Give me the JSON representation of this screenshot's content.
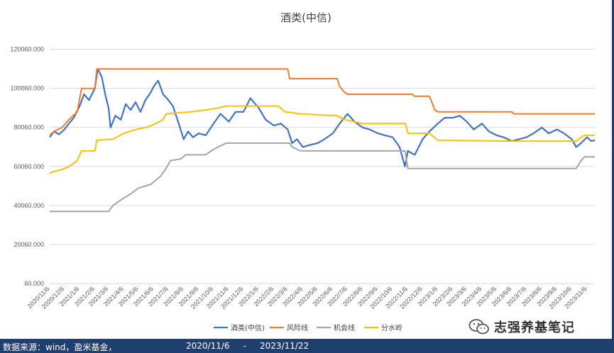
{
  "colors": {
    "wine": "#4472c4",
    "risk": "#ed7d31",
    "chance": "#a5a5a5",
    "divide": "#ffc000",
    "grid": "#d9d9d9",
    "footer_bg": "#1f3f6e"
  },
  "footer": {
    "source": "数据来源：wind，盈米基金，",
    "start": "2020/11/6",
    "dash": "-",
    "end": "2023/11/22"
  },
  "watermark": {
    "text": "志强养基笔记",
    "icon": "wechat-icon"
  },
  "chart_data": {
    "type": "line",
    "title": "酒类(中信)",
    "xlabel": "",
    "ylabel": "",
    "ylim": [
      60,
      130060
    ],
    "yticks": [
      "60.000",
      "20060.000",
      "40060.000",
      "60060.000",
      "80060.000",
      "100060.000",
      "120060.000"
    ],
    "ytick_values": [
      60,
      20060,
      40060,
      60060,
      80060,
      100060,
      120060
    ],
    "x_start": "2020/11/6",
    "x_end": "2023/11/22",
    "x_ticks": [
      "2020/11/6",
      "2020/12/6",
      "2021/1/6",
      "2021/2/6",
      "2021/3/6",
      "2021/4/6",
      "2021/5/6",
      "2021/6/6",
      "2021/7/6",
      "2021/8/6",
      "2021/9/6",
      "2021/10/6",
      "2021/11/6",
      "2021/12/6",
      "2022/1/6",
      "2022/2/6",
      "2022/3/6",
      "2022/4/6",
      "2022/5/6",
      "2022/6/6",
      "2022/7/6",
      "2022/8/6",
      "2022/9/6",
      "2022/10/6",
      "2022/11/6",
      "2022/12/6",
      "2023/1/6",
      "2023/2/6",
      "2023/3/6",
      "2023/4/6",
      "2023/5/6",
      "2023/6/6",
      "2023/7/6",
      "2023/8/6",
      "2023/9/6",
      "2023/10/6",
      "2023/11/6"
    ],
    "grid": true,
    "legend_position": "bottom",
    "series": [
      {
        "name": "酒类(中信)",
        "color": "#4472c4",
        "points": [
          [
            "2020/11/6",
            75000
          ],
          [
            "2020/11/15",
            78000
          ],
          [
            "2020/11/25",
            76500
          ],
          [
            "2020/12/6",
            79000
          ],
          [
            "2020/12/15",
            82000
          ],
          [
            "2020/12/25",
            85000
          ],
          [
            "2021/1/6",
            91000
          ],
          [
            "2021/1/15",
            97000
          ],
          [
            "2021/1/25",
            94000
          ],
          [
            "2021/2/6",
            100000
          ],
          [
            "2021/2/12",
            110000
          ],
          [
            "2021/2/20",
            106000
          ],
          [
            "2021/2/28",
            96000
          ],
          [
            "2021/3/6",
            90000
          ],
          [
            "2021/3/10",
            80000
          ],
          [
            "2021/3/20",
            86000
          ],
          [
            "2021/3/31",
            84000
          ],
          [
            "2021/4/10",
            92000
          ],
          [
            "2021/4/20",
            89000
          ],
          [
            "2021/4/30",
            93000
          ],
          [
            "2021/5/10",
            88000
          ],
          [
            "2021/5/20",
            94000
          ],
          [
            "2021/5/31",
            98000
          ],
          [
            "2021/6/6",
            101000
          ],
          [
            "2021/6/15",
            104000
          ],
          [
            "2021/6/25",
            97000
          ],
          [
            "2021/7/6",
            94000
          ],
          [
            "2021/7/15",
            91000
          ],
          [
            "2021/7/27",
            82000
          ],
          [
            "2021/8/6",
            74000
          ],
          [
            "2021/8/15",
            78000
          ],
          [
            "2021/8/25",
            75000
          ],
          [
            "2021/9/6",
            77000
          ],
          [
            "2021/9/20",
            76000
          ],
          [
            "2021/10/6",
            82000
          ],
          [
            "2021/10/20",
            87000
          ],
          [
            "2021/11/6",
            83000
          ],
          [
            "2021/11/20",
            88000
          ],
          [
            "2021/12/6",
            88000
          ],
          [
            "2021/12/20",
            95000
          ],
          [
            "2022/1/6",
            90000
          ],
          [
            "2022/1/20",
            84000
          ],
          [
            "2022/2/6",
            81000
          ],
          [
            "2022/2/20",
            82000
          ],
          [
            "2022/3/6",
            79000
          ],
          [
            "2022/3/15",
            72000
          ],
          [
            "2022/3/25",
            74000
          ],
          [
            "2022/4/6",
            70000
          ],
          [
            "2022/4/20",
            71000
          ],
          [
            "2022/5/6",
            72000
          ],
          [
            "2022/5/20",
            74000
          ],
          [
            "2022/6/6",
            77000
          ],
          [
            "2022/6/20",
            82000
          ],
          [
            "2022/7/6",
            87000
          ],
          [
            "2022/7/20",
            83000
          ],
          [
            "2022/8/6",
            80000
          ],
          [
            "2022/8/20",
            79000
          ],
          [
            "2022/9/6",
            77000
          ],
          [
            "2022/9/20",
            76000
          ],
          [
            "2022/10/6",
            75000
          ],
          [
            "2022/10/20",
            70000
          ],
          [
            "2022/10/31",
            60000
          ],
          [
            "2022/11/6",
            68000
          ],
          [
            "2022/11/20",
            66000
          ],
          [
            "2022/12/6",
            74000
          ],
          [
            "2022/12/20",
            78000
          ],
          [
            "2023/1/6",
            82000
          ],
          [
            "2023/1/20",
            85000
          ],
          [
            "2023/2/6",
            85000
          ],
          [
            "2023/2/20",
            86000
          ],
          [
            "2023/3/6",
            83000
          ],
          [
            "2023/3/20",
            79000
          ],
          [
            "2023/4/6",
            82000
          ],
          [
            "2023/4/20",
            78000
          ],
          [
            "2023/5/6",
            76000
          ],
          [
            "2023/5/20",
            75000
          ],
          [
            "2023/6/6",
            73000
          ],
          [
            "2023/6/20",
            74000
          ],
          [
            "2023/7/6",
            75000
          ],
          [
            "2023/7/20",
            77000
          ],
          [
            "2023/8/6",
            80000
          ],
          [
            "2023/8/20",
            77000
          ],
          [
            "2023/9/6",
            79000
          ],
          [
            "2023/9/20",
            77000
          ],
          [
            "2023/10/6",
            74000
          ],
          [
            "2023/10/15",
            70000
          ],
          [
            "2023/10/25",
            72000
          ],
          [
            "2023/11/6",
            75000
          ],
          [
            "2023/11/15",
            73000
          ],
          [
            "2023/11/22",
            73500
          ]
        ]
      },
      {
        "name": "风险线",
        "color": "#ed7d31",
        "points": [
          [
            "2020/11/6",
            76000
          ],
          [
            "2020/11/15",
            78000
          ],
          [
            "2020/12/1",
            80000
          ],
          [
            "2020/12/15",
            84000
          ],
          [
            "2021/1/1",
            88000
          ],
          [
            "2021/1/10",
            100000
          ],
          [
            "2021/2/6",
            100000
          ],
          [
            "2021/2/10",
            110000
          ],
          [
            "2022/3/6",
            110000
          ],
          [
            "2022/3/10",
            105000
          ],
          [
            "2022/6/15",
            105000
          ],
          [
            "2022/6/20",
            101000
          ],
          [
            "2022/6/30",
            98000
          ],
          [
            "2022/7/6",
            97000
          ],
          [
            "2022/11/15",
            97000
          ],
          [
            "2022/11/20",
            96000
          ],
          [
            "2022/12/20",
            96000
          ],
          [
            "2022/12/31",
            89000
          ],
          [
            "2023/1/6",
            88000
          ],
          [
            "2023/6/6",
            88000
          ],
          [
            "2023/6/10",
            87000
          ],
          [
            "2023/11/22",
            87000
          ]
        ]
      },
      {
        "name": "机会线",
        "color": "#a5a5a5",
        "points": [
          [
            "2020/11/6",
            37000
          ],
          [
            "2021/3/6",
            37000
          ],
          [
            "2021/3/15",
            40000
          ],
          [
            "2021/4/1",
            43000
          ],
          [
            "2021/4/20",
            46000
          ],
          [
            "2021/5/6",
            49000
          ],
          [
            "2021/5/20",
            50000
          ],
          [
            "2021/6/1",
            51000
          ],
          [
            "2021/6/10",
            53000
          ],
          [
            "2021/6/20",
            55000
          ],
          [
            "2021/7/1",
            59000
          ],
          [
            "2021/7/10",
            63000
          ],
          [
            "2021/8/1",
            64000
          ],
          [
            "2021/8/10",
            66000
          ],
          [
            "2021/9/20",
            66000
          ],
          [
            "2021/10/1",
            68000
          ],
          [
            "2021/10/15",
            70000
          ],
          [
            "2021/11/1",
            72000
          ],
          [
            "2022/3/10",
            72000
          ],
          [
            "2022/3/15",
            70000
          ],
          [
            "2022/4/1",
            68000
          ],
          [
            "2022/10/31",
            68000
          ],
          [
            "2022/11/6",
            59000
          ],
          [
            "2023/10/15",
            59000
          ],
          [
            "2023/10/25",
            63000
          ],
          [
            "2023/11/1",
            65000
          ],
          [
            "2023/11/22",
            65000
          ]
        ]
      },
      {
        "name": "分水岭",
        "color": "#ffc000",
        "points": [
          [
            "2020/11/6",
            56500
          ],
          [
            "2020/11/15",
            57500
          ],
          [
            "2020/12/1",
            58500
          ],
          [
            "2020/12/15",
            60000
          ],
          [
            "2021/1/1",
            63000
          ],
          [
            "2021/1/10",
            68000
          ],
          [
            "2021/2/6",
            68000
          ],
          [
            "2021/2/10",
            73500
          ],
          [
            "2021/3/15",
            74000
          ],
          [
            "2021/4/6",
            77000
          ],
          [
            "2021/5/1",
            79000
          ],
          [
            "2021/5/20",
            80000
          ],
          [
            "2021/6/6",
            81500
          ],
          [
            "2021/6/25",
            84000
          ],
          [
            "2021/7/1",
            87000
          ],
          [
            "2021/8/20",
            88000
          ],
          [
            "2021/9/20",
            89000
          ],
          [
            "2021/10/15",
            90000
          ],
          [
            "2021/11/1",
            91000
          ],
          [
            "2022/2/15",
            91000
          ],
          [
            "2022/3/1",
            88000
          ],
          [
            "2022/4/1",
            87000
          ],
          [
            "2022/6/15",
            86000
          ],
          [
            "2022/7/1",
            84000
          ],
          [
            "2022/8/6",
            82000
          ],
          [
            "2022/11/1",
            82000
          ],
          [
            "2022/11/6",
            77000
          ],
          [
            "2022/12/20",
            77000
          ],
          [
            "2023/1/6",
            73500
          ],
          [
            "2023/6/6",
            73000
          ],
          [
            "2023/10/15",
            73000
          ],
          [
            "2023/10/25",
            75000
          ],
          [
            "2023/11/1",
            76000
          ],
          [
            "2023/11/22",
            76000
          ]
        ]
      }
    ]
  }
}
